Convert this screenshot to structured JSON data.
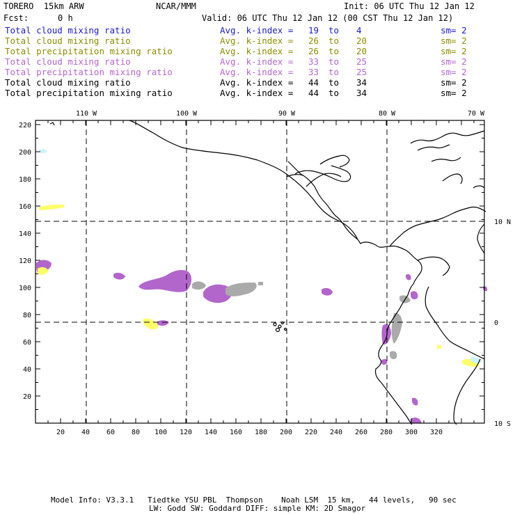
{
  "header": {
    "model": "TORERO  15km ARW",
    "org": "NCAR/MMM",
    "init": "Init: 06 UTC Thu 12 Jan 12",
    "fcst_label": "Fcst:",
    "fcst_value": "0 h",
    "valid": "Valid: 06 UTC Thu 12 Jan 12 (00 CST Thu 12 Jan 12)"
  },
  "legend": [
    {
      "field": "Total cloud mixing ratio",
      "metric": "Avg. k-index =",
      "from": "19",
      "to_word": "to",
      "to": "4",
      "sm": "sm= 2",
      "color": "#1a1acc"
    },
    {
      "field": "Total cloud mixing ratio",
      "metric": "Avg. k-index =",
      "from": "26",
      "to_word": "to",
      "to": "20",
      "sm": "sm= 2",
      "color": "#8c8c00"
    },
    {
      "field": "Total precipitation mixing ratio",
      "metric": "Avg. k-index =",
      "from": "26",
      "to_word": "to",
      "to": "20",
      "sm": "sm= 2",
      "color": "#8c8c00"
    },
    {
      "field": "Total cloud mixing ratio",
      "metric": "Avg. k-index =",
      "from": "33",
      "to_word": "to",
      "to": "25",
      "sm": "sm= 2",
      "color": "#b266cc"
    },
    {
      "field": "Total precipitation mixing ratio",
      "metric": "Avg. k-index =",
      "from": "33",
      "to_word": "to",
      "to": "25",
      "sm": "sm= 2",
      "color": "#b266cc"
    },
    {
      "field": "Total cloud mixing ratio",
      "metric": "Avg. k-index =",
      "from": "44",
      "to_word": "to",
      "to": "34",
      "sm": "sm= 2",
      "color": "#000000"
    },
    {
      "field": "Total precipitation mixing ratio",
      "metric": "Avg. k-index =",
      "from": "44",
      "to_word": "to",
      "to": "34",
      "sm": "sm= 2",
      "color": "#000000"
    }
  ],
  "map": {
    "lon_labels": [
      "110 W",
      "100 W",
      "90 W",
      "80 W",
      "70 W"
    ],
    "lat_labels": [
      "10 N",
      "0",
      "10 S"
    ],
    "x_ticks": [
      "20",
      "40",
      "60",
      "80",
      "100",
      "120",
      "140",
      "160",
      "180",
      "200",
      "220",
      "240",
      "260",
      "280",
      "300",
      "320"
    ],
    "y_ticks": [
      "220",
      "200",
      "180",
      "160",
      "140",
      "120",
      "100",
      "80",
      "60",
      "40",
      "20"
    ],
    "colors": {
      "purple": "#b266cc",
      "gray": "#aaaaaa",
      "yellow": "#ffff66",
      "lightblue": "#ccf2ff"
    }
  },
  "footer": {
    "line1": "Model Info: V3.3.1   Tiedtke YSU PBL  Thompson    Noah LSM  15 km,   44 levels,   90 sec",
    "line2": "LW: Godd SW: Goddard DIFF: simple KM: 2D Smagor"
  }
}
